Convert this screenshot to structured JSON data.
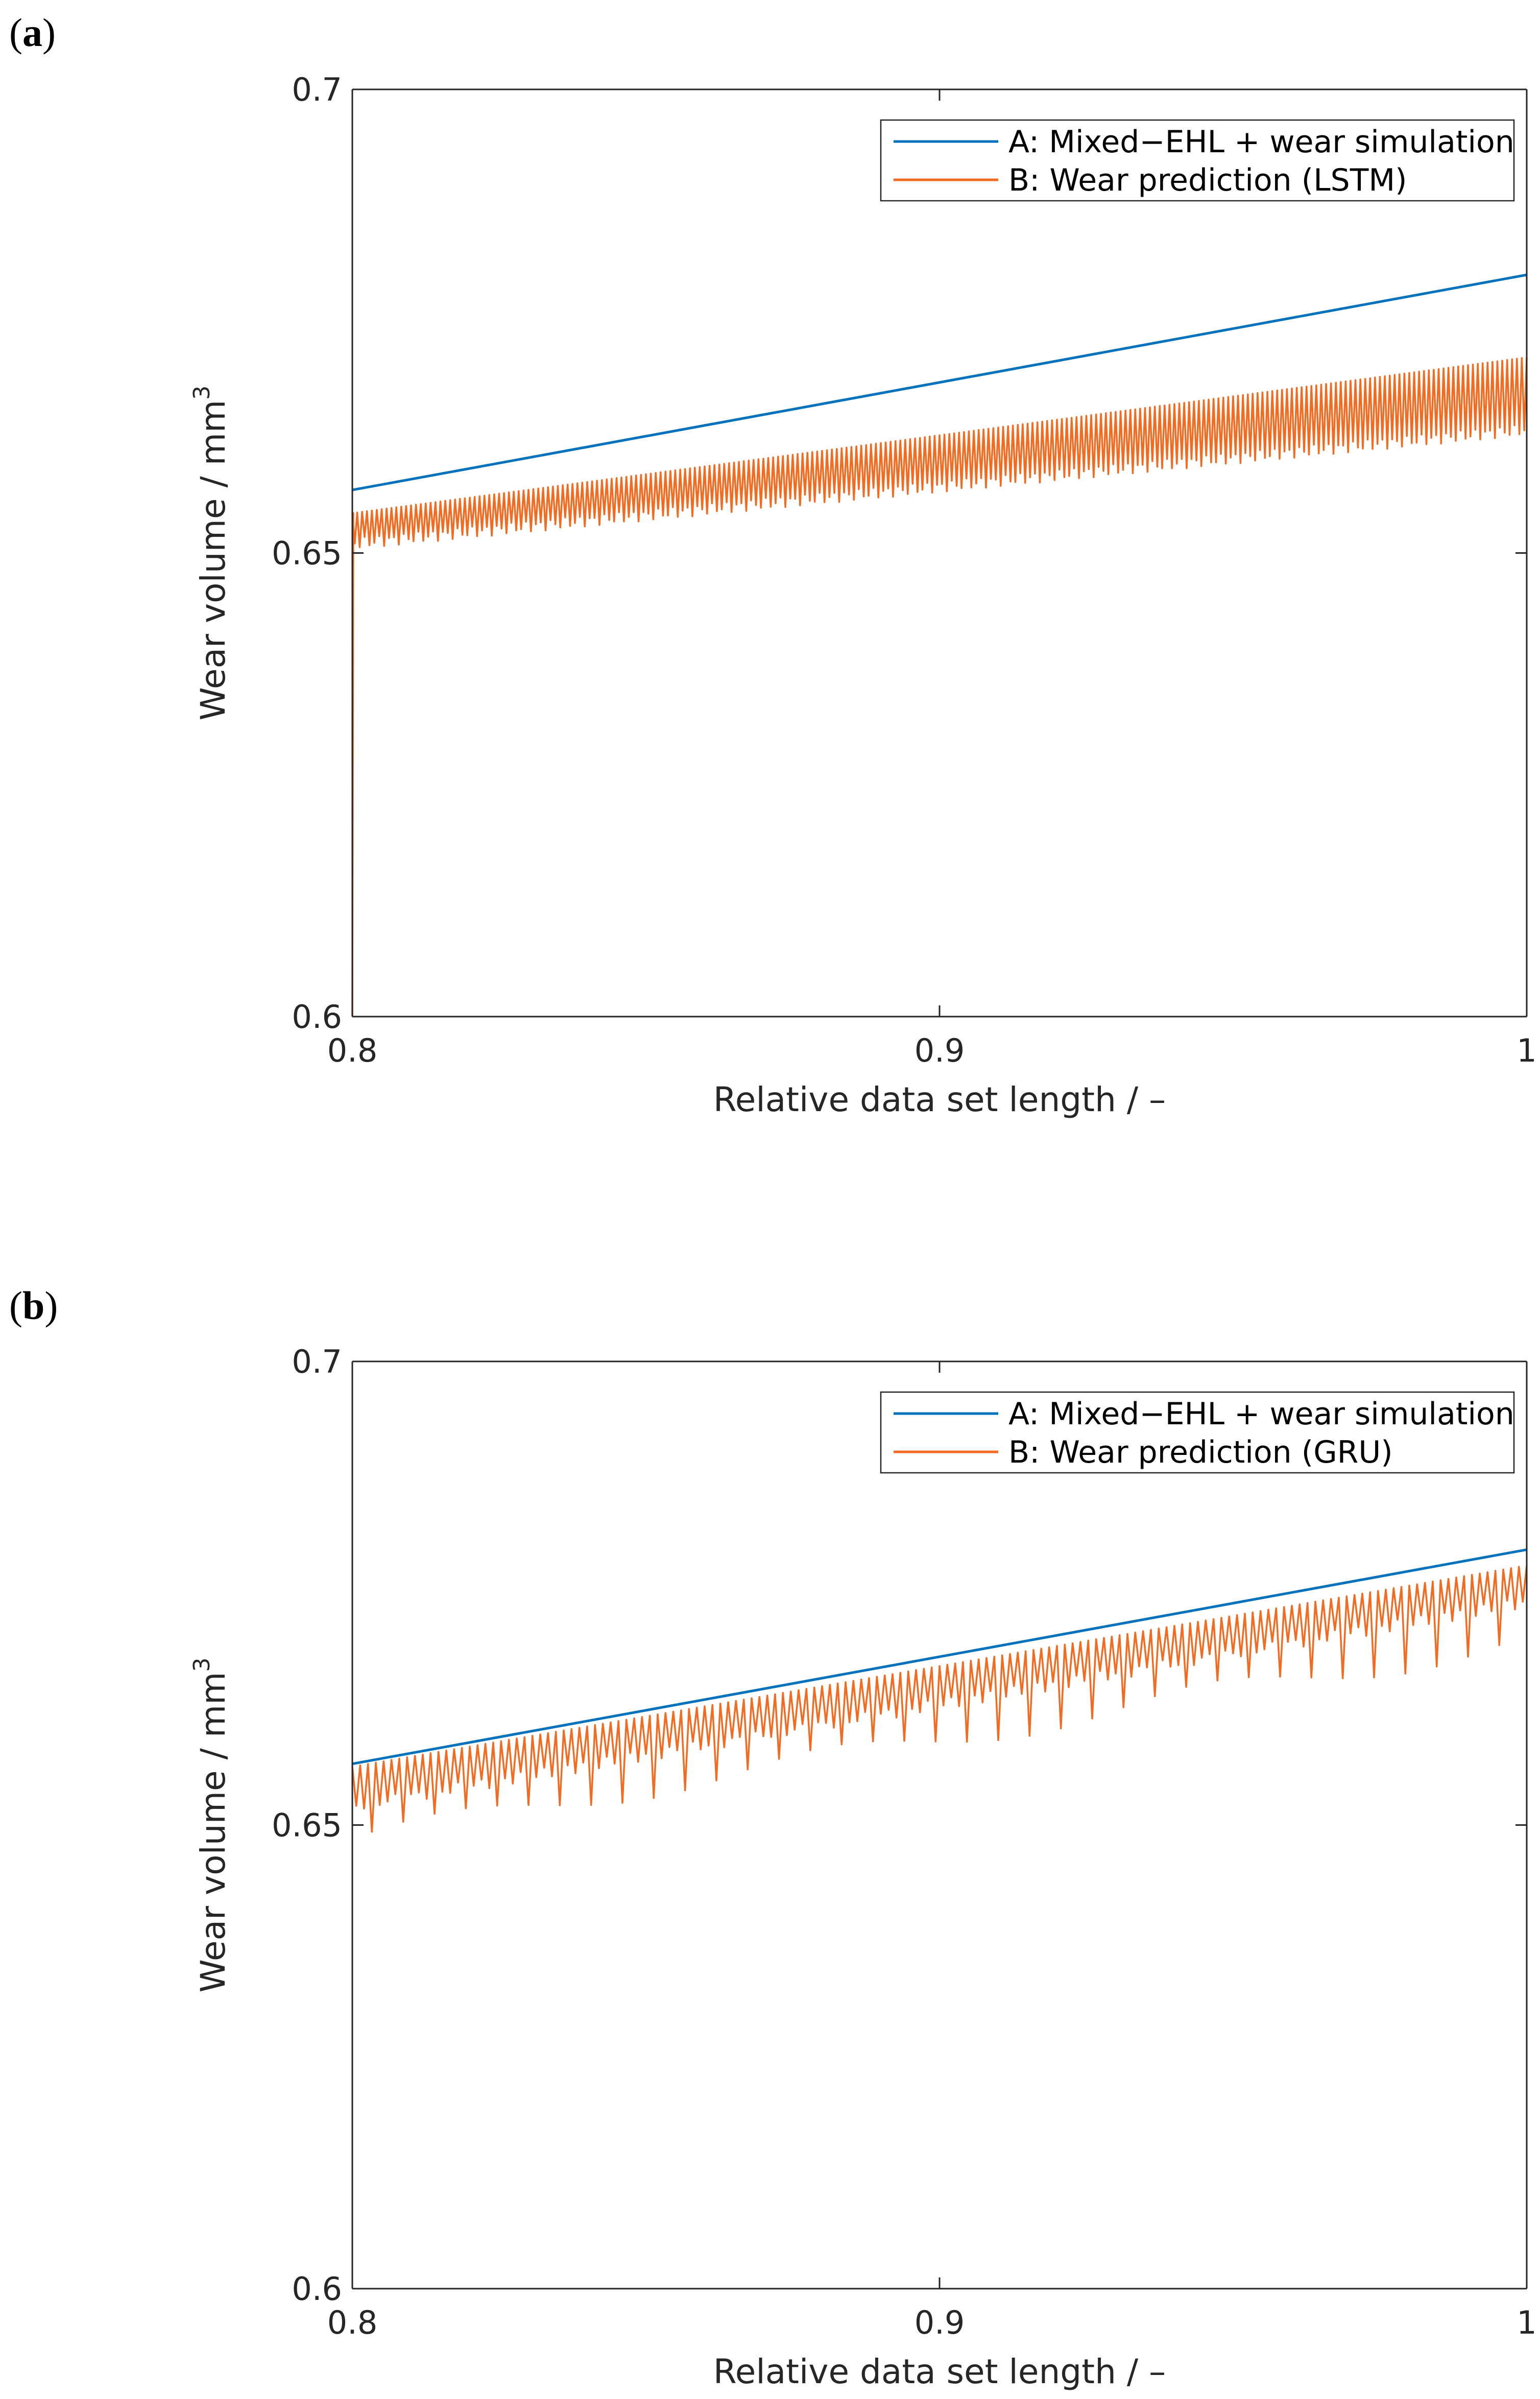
{
  "chart_data": [
    {
      "panel_label": "a",
      "type": "line",
      "xlabel": "Relative data set length / –",
      "ylabel": "Wear volume / mm",
      "ylabel_superscript": "3",
      "xlim": [
        0.8,
        1.0
      ],
      "ylim": [
        0.6,
        0.7
      ],
      "x_ticks": [
        {
          "value": 0.8,
          "label": "0.8"
        },
        {
          "value": 0.9,
          "label": "0.9"
        },
        {
          "value": 1.0,
          "label": "1"
        }
      ],
      "y_ticks": [
        {
          "value": 0.6,
          "label": "0.6"
        },
        {
          "value": 0.65,
          "label": "0.65"
        },
        {
          "value": 0.7,
          "label": "0.7"
        }
      ],
      "legend_position": "top-right",
      "series": [
        {
          "name": "A: Mixed−EHL + wear simulation",
          "color": "#0072BD",
          "kind": "linear",
          "x": [
            0.8,
            1.0
          ],
          "y": [
            0.6568,
            0.68
          ]
        },
        {
          "name": "B: Wear prediction (LSTM)",
          "color": "#F26B21",
          "kind": "oscillating",
          "start_value": 0.6,
          "x_range": [
            0.8,
            1.0
          ],
          "upper": [
            0.6543,
            0.6711
          ],
          "lower": [
            0.651,
            0.6633
          ],
          "cycles": 240,
          "deep_dip_every": 0,
          "deep_dip_depth": [
            0,
            0
          ]
        }
      ]
    },
    {
      "panel_label": "b",
      "type": "line",
      "xlabel": "Relative data set length / –",
      "ylabel": "Wear volume / mm",
      "ylabel_superscript": "3",
      "xlim": [
        0.8,
        1.0
      ],
      "ylim": [
        0.6,
        0.7
      ],
      "x_ticks": [
        {
          "value": 0.8,
          "label": "0.8"
        },
        {
          "value": 0.9,
          "label": "0.9"
        },
        {
          "value": 1.0,
          "label": "1"
        }
      ],
      "y_ticks": [
        {
          "value": 0.6,
          "label": "0.6"
        },
        {
          "value": 0.65,
          "label": "0.65"
        },
        {
          "value": 0.7,
          "label": "0.7"
        }
      ],
      "legend_position": "top-right",
      "series": [
        {
          "name": "A: Mixed−EHL + wear simulation",
          "color": "#0072BD",
          "kind": "linear",
          "x": [
            0.8,
            1.0
          ],
          "y": [
            0.6566,
            0.6797
          ]
        },
        {
          "name": "B: Wear prediction (GRU)",
          "color": "#F26B21",
          "kind": "oscillating",
          "start_value": null,
          "x_range": [
            0.8,
            1.0
          ],
          "upper": [
            0.6563,
            0.678
          ],
          "lower": [
            0.652,
            0.674
          ],
          "cycles": 150,
          "deep_dip_every": 4,
          "deep_dip_depth": [
            0.0045,
            0.0055
          ]
        }
      ]
    }
  ]
}
